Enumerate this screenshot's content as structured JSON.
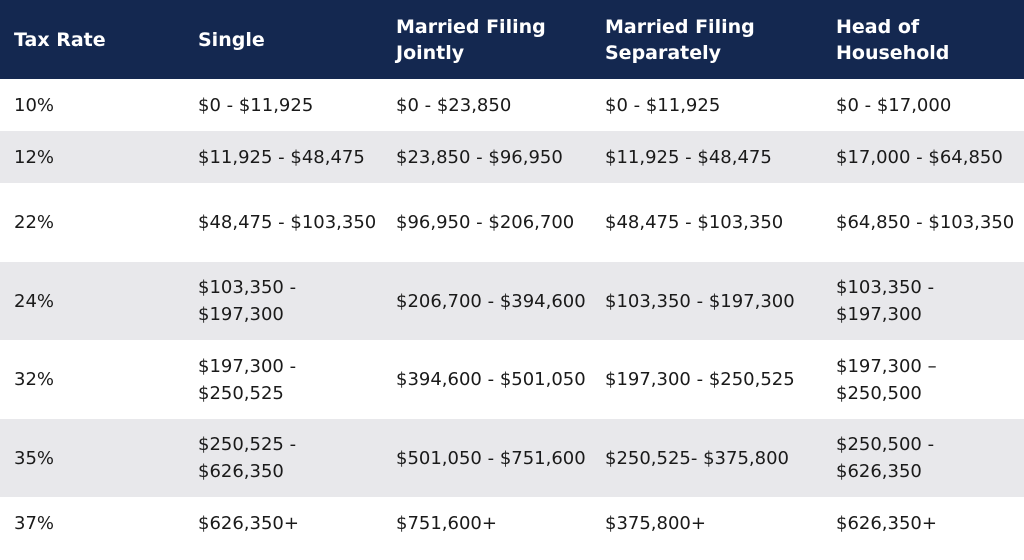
{
  "table": {
    "headers": [
      "Tax Rate",
      "Single",
      "Married Filing Jointly",
      "Married Filing Separately",
      "Head of Household"
    ],
    "rows": [
      [
        "10%",
        "$0 - $11,925",
        "$0 - $23,850",
        "$0 - $11,925",
        "$0 - $17,000"
      ],
      [
        "12%",
        "$11,925 - $48,475",
        "$23,850 - $96,950",
        "$11,925 - $48,475",
        "$17,000 - $64,850"
      ],
      [
        "22%",
        "$48,475 - $103,350",
        "$96,950 - $206,700",
        "$48,475 - $103,350",
        "$64,850 - $103,350"
      ],
      [
        "24%",
        "$103,350 - $197,300",
        "$206,700 - $394,600",
        "$103,350 - $197,300",
        "$103,350 - $197,300"
      ],
      [
        "32%",
        "$197,300 - $250,525",
        "$394,600 - $501,050",
        "$197,300 - $250,525",
        "$197,300 – $250,500"
      ],
      [
        "35%",
        "$250,525 - $626,350",
        "$501,050 - $751,600",
        "$250,525- $375,800",
        "$250,500 - $626,350"
      ],
      [
        "37%",
        "$626,350+",
        "$751,600+",
        "$375,800+",
        "$626,350+"
      ]
    ]
  },
  "colors": {
    "header_bg": "#142850",
    "header_text": "#ffffff",
    "row_alt_bg": "#e8e8eb",
    "row_bg": "#ffffff",
    "body_text": "#1a1a1a"
  }
}
